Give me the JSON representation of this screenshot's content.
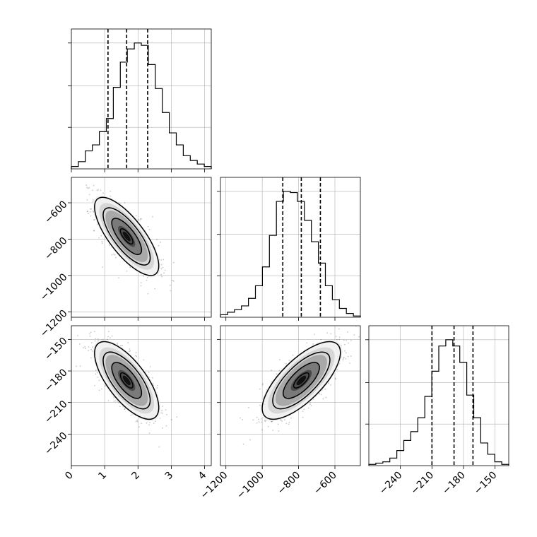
{
  "figure": {
    "type": "corner-plot"
  },
  "chart_data": [
    {
      "type": "histogram",
      "panel": "hist-param-1",
      "x_range": [
        0,
        4.2
      ],
      "bins_start": 0,
      "bin_width": 0.21,
      "counts": [
        2,
        6,
        15,
        20,
        31,
        42,
        68,
        89,
        100,
        105,
        103,
        87,
        67,
        47,
        30,
        20,
        11,
        7,
        4,
        2
      ],
      "quantiles": [
        1.1,
        1.66,
        2.29
      ],
      "xticks": [
        0,
        1,
        2,
        3,
        4
      ],
      "yticks_frac": [
        0.33,
        0.66,
        1.0
      ]
    },
    {
      "type": "histogram",
      "panel": "hist-param-2",
      "x_range": [
        -1230,
        -460
      ],
      "bins_start": -1230,
      "bin_width": 38.5,
      "counts": [
        2,
        4,
        6,
        9,
        15,
        25,
        40,
        65,
        92,
        100,
        99,
        92,
        77,
        60,
        43,
        25,
        14,
        7,
        3,
        1
      ],
      "quantiles": [
        -887,
        -785,
        -680
      ],
      "xticks": [
        -1200,
        -1000,
        -800,
        -600
      ],
      "yticks_frac": [
        0.33,
        0.66,
        1.0
      ]
    },
    {
      "type": "histogram",
      "panel": "hist-param-3",
      "x_range": [
        -270,
        -137
      ],
      "bins_start": -270,
      "bin_width": 6.65,
      "counts": [
        1,
        2,
        3,
        6,
        12,
        20,
        27,
        38,
        55,
        75,
        95,
        100,
        95,
        82,
        56,
        38,
        18,
        9,
        3,
        1
      ],
      "quantiles": [
        -210,
        -189,
        -171
      ],
      "xticks": [
        -240,
        -210,
        -180,
        -150
      ],
      "yticks_frac": [
        0.33,
        0.66,
        1.0
      ]
    },
    {
      "type": "scatter-density",
      "panel": "param-1-vs-param-2",
      "x_range": [
        0,
        4.2
      ],
      "y_range": [
        -1230,
        -460
      ],
      "mean": [
        1.66,
        -785
      ],
      "std": [
        0.47,
        105
      ],
      "corr": -0.75,
      "xticks": [
        0,
        1,
        2,
        3,
        4
      ],
      "yticks": [
        -1200,
        -1000,
        -800,
        -600
      ]
    },
    {
      "type": "scatter-density",
      "panel": "param-1-vs-param-3",
      "x_range": [
        0,
        4.2
      ],
      "y_range": [
        -270,
        -137
      ],
      "mean": [
        1.66,
        -189
      ],
      "std": [
        0.47,
        18
      ],
      "corr": -0.7,
      "xticks": [
        0,
        1,
        2,
        3,
        4
      ],
      "yticks": [
        -240,
        -210,
        -180,
        -150
      ]
    },
    {
      "type": "scatter-density",
      "panel": "param-2-vs-param-3",
      "x_range": [
        -1230,
        -460
      ],
      "y_range": [
        -270,
        -137
      ],
      "mean": [
        -785,
        -189
      ],
      "std": [
        105,
        18
      ],
      "corr": 0.72,
      "xticks": [
        -1200,
        -1000,
        -800,
        -600
      ],
      "yticks": [
        -240,
        -210,
        -180,
        -150
      ]
    }
  ],
  "colors": {
    "line": "#000000",
    "grid": "#b0b0b0",
    "points": "#000000",
    "background": "#ffffff"
  }
}
